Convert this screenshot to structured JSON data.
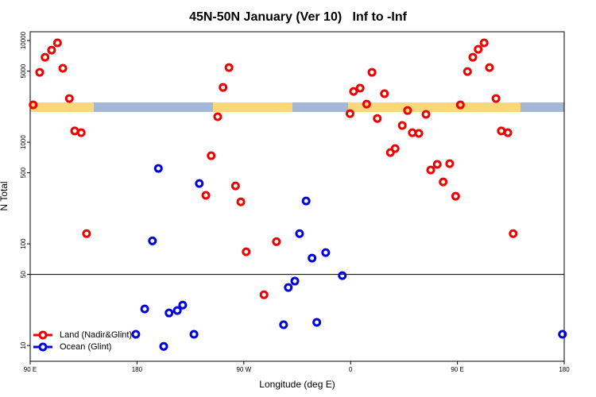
{
  "chart_data": {
    "type": "scatter",
    "title": "45N-50N January (Ver 10)   Inf to -Inf",
    "xlabel": "Longitude (deg E)",
    "ylabel": "N Total",
    "xlim": [
      90,
      540
    ],
    "ylim": [
      7,
      12200
    ],
    "log_y": true,
    "hline": 50,
    "legend": "lower left",
    "xticks": [
      {
        "value": 90,
        "label": "90 E"
      },
      {
        "value": 180,
        "label": "180"
      },
      {
        "value": 270,
        "label": "90 W"
      },
      {
        "value": 360,
        "label": "0"
      },
      {
        "value": 450,
        "label": "90 E"
      },
      {
        "value": 540,
        "label": "180"
      }
    ],
    "yticks": [
      10,
      50,
      100,
      500,
      1000,
      5000,
      10000
    ],
    "series": [
      {
        "name": "Land (Nadir&Glint)",
        "color": "#ee0000",
        "x": [
          92.5,
          98,
          102.5,
          108,
          113,
          117.5,
          123,
          127.5,
          133,
          137.5,
          238,
          242.5,
          248,
          252.5,
          257.5,
          263,
          267.5,
          272,
          287,
          297.5,
          359.5,
          362.5,
          368,
          373.5,
          378,
          382.5,
          388.5,
          393.5,
          397.5,
          403.5,
          408,
          412,
          417.5,
          423.5,
          427.5,
          433,
          438,
          443.5,
          448.5,
          452.5,
          458.5,
          463,
          467.5,
          472.5,
          477,
          482.5,
          487,
          492.5,
          497
        ],
        "values": [
          2330,
          4870,
          6850,
          8050,
          9480,
          5330,
          2690,
          1290,
          1240,
          126,
          300,
          736,
          1780,
          3460,
          5420,
          372,
          259,
          83.5,
          31.6,
          105,
          1910,
          3160,
          3400,
          2370,
          4870,
          1710,
          3000,
          791,
          866,
          1460,
          2050,
          1240,
          1220,
          1880,
          533,
          605,
          407,
          615,
          294,
          2330,
          4950,
          6850,
          8200,
          9480,
          5420,
          2690,
          1290,
          1240,
          126
        ]
      },
      {
        "name": "Ocean (Glint)",
        "color": "#0000dd",
        "x": [
          179,
          186.5,
          193,
          198,
          202.5,
          207,
          214,
          218.5,
          228,
          232.5,
          303.5,
          307.5,
          313,
          317,
          322.5,
          327.5,
          331.5,
          339,
          353,
          538.5
        ],
        "values": [
          12.9,
          22.9,
          107,
          552,
          9.8,
          20.9,
          22.1,
          25,
          12.9,
          392,
          16,
          37.2,
          43,
          126,
          264,
          72.3,
          16.9,
          82,
          48.7,
          12.9
        ]
      }
    ]
  }
}
